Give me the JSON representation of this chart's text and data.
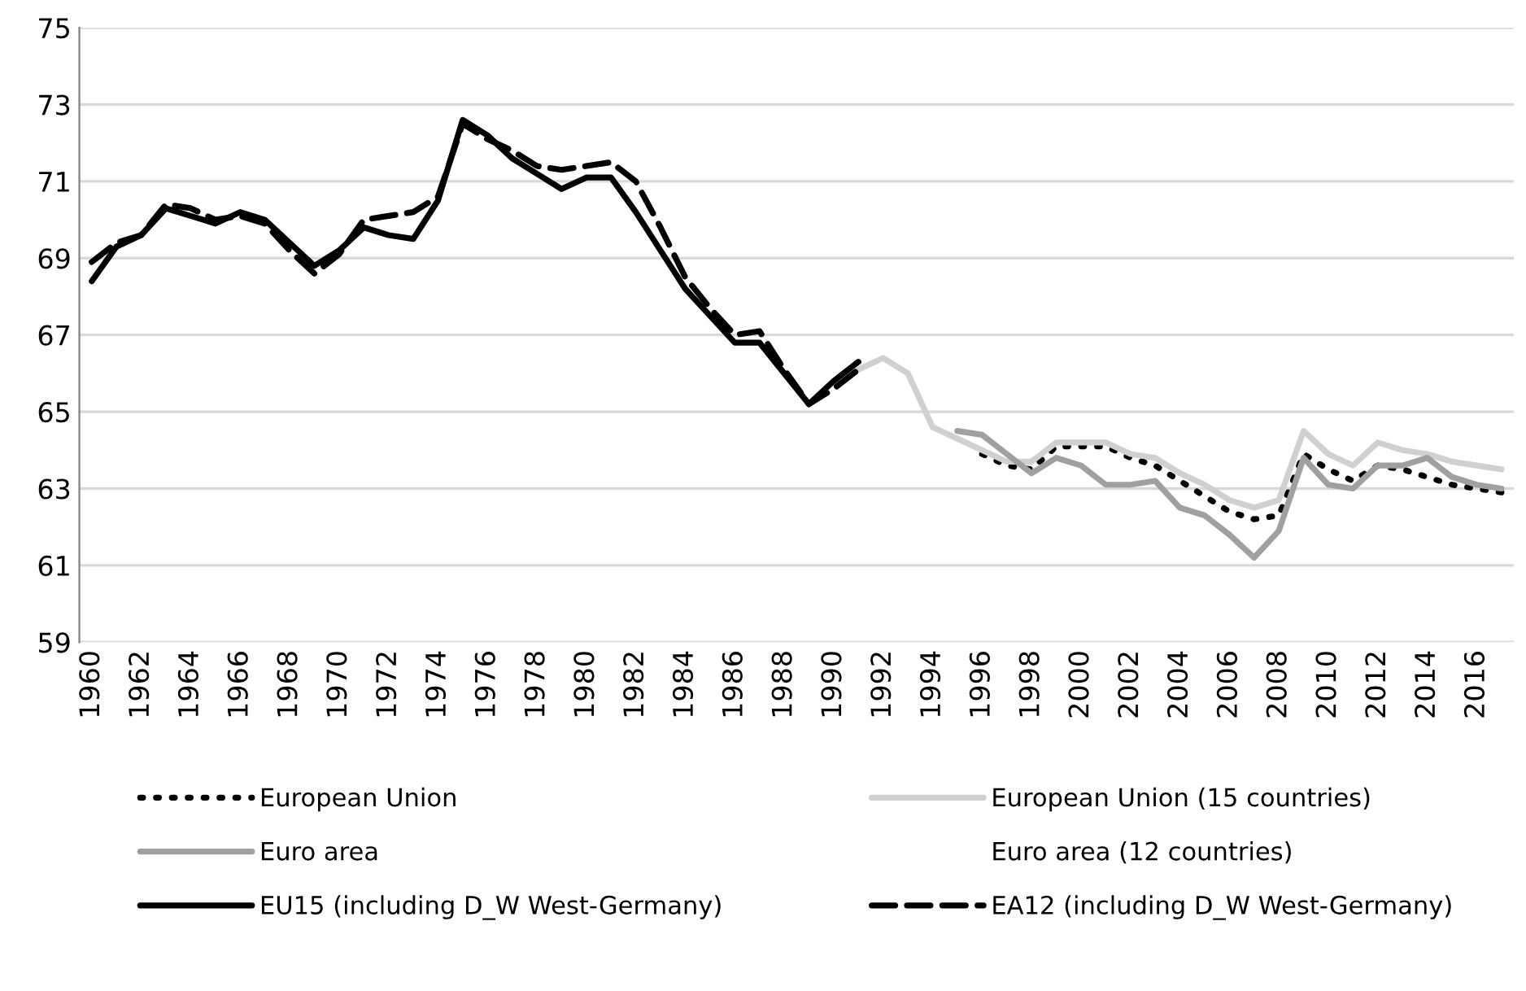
{
  "chart_data": {
    "type": "line",
    "categories": [
      "1960",
      null,
      "1962",
      null,
      "1964",
      null,
      "1966",
      null,
      "1968",
      null,
      "1970",
      null,
      "1972",
      null,
      "1974",
      null,
      "1976",
      null,
      "1978",
      null,
      "1980",
      null,
      "1982",
      null,
      "1984",
      null,
      "1986",
      null,
      "1988",
      null,
      "1990",
      null,
      "1992",
      null,
      "1994",
      null,
      "1996",
      null,
      "1998",
      null,
      "2000",
      null,
      "2002",
      null,
      "2004",
      null,
      "2006",
      null,
      "2008",
      null,
      "2010",
      null,
      "2012",
      null,
      "2014",
      null,
      "2016",
      null
    ],
    "ylim": [
      59,
      75
    ],
    "yticks": [
      59,
      61,
      63,
      65,
      67,
      69,
      71,
      73,
      75
    ],
    "grid": "y",
    "legend": "bottom",
    "series": [
      {
        "name": "European Union",
        "color": "#000000",
        "line_style": "dotted",
        "values": [
          null,
          null,
          null,
          null,
          null,
          null,
          null,
          null,
          null,
          null,
          null,
          null,
          null,
          null,
          null,
          null,
          null,
          null,
          null,
          null,
          null,
          null,
          null,
          null,
          null,
          null,
          null,
          null,
          null,
          null,
          null,
          null,
          null,
          null,
          null,
          null,
          63.9,
          63.6,
          63.5,
          64.1,
          64.1,
          64.1,
          63.8,
          63.6,
          63.2,
          62.8,
          62.4,
          62.2,
          62.3,
          63.9,
          63.5,
          63.2,
          63.6,
          63.5,
          63.3,
          63.1,
          63.0,
          62.9
        ]
      },
      {
        "name": "European Union (15 countries)",
        "color": "#d0d0d0",
        "line_style": "solid",
        "values": [
          null,
          null,
          null,
          null,
          null,
          null,
          null,
          null,
          null,
          null,
          null,
          null,
          null,
          null,
          null,
          null,
          null,
          null,
          null,
          null,
          null,
          null,
          null,
          null,
          null,
          null,
          null,
          null,
          null,
          null,
          null,
          66.1,
          66.4,
          66.0,
          64.6,
          64.3,
          64.0,
          63.7,
          63.7,
          64.2,
          64.2,
          64.2,
          63.9,
          63.8,
          63.4,
          63.1,
          62.7,
          62.5,
          62.7,
          64.5,
          63.9,
          63.6,
          64.2,
          64.0,
          63.9,
          63.7,
          63.6,
          63.5
        ]
      },
      {
        "name": "Euro area",
        "color": "#a0a0a0",
        "line_style": "solid",
        "values": [
          null,
          null,
          null,
          null,
          null,
          null,
          null,
          null,
          null,
          null,
          null,
          null,
          null,
          null,
          null,
          null,
          null,
          null,
          null,
          null,
          null,
          null,
          null,
          null,
          null,
          null,
          null,
          null,
          null,
          null,
          null,
          null,
          null,
          null,
          null,
          64.5,
          64.4,
          63.9,
          63.4,
          63.8,
          63.6,
          63.1,
          63.1,
          63.2,
          62.5,
          62.3,
          61.8,
          61.2,
          61.9,
          63.8,
          63.1,
          63.0,
          63.6,
          63.6,
          63.8,
          63.3,
          63.1,
          63.0
        ]
      },
      {
        "name": "Euro area (12 countries)",
        "values": [
          null,
          null,
          null,
          null,
          null,
          null,
          null,
          null,
          null,
          null,
          null,
          null,
          null,
          null,
          null,
          null,
          null,
          null,
          null,
          null,
          null,
          null,
          null,
          null,
          null,
          null,
          null,
          null,
          null,
          null,
          null,
          null,
          null,
          null,
          null,
          null,
          null,
          null,
          null,
          null,
          null,
          null,
          null,
          null,
          null,
          null,
          null,
          null,
          null,
          null,
          null,
          null,
          null,
          null,
          null,
          null,
          null,
          null
        ]
      },
      {
        "name": "EU15 (including D_W West-Germany)",
        "color": "#000000",
        "line_style": "solid",
        "values": [
          68.4,
          69.3,
          69.6,
          70.3,
          70.1,
          69.9,
          70.2,
          70.0,
          69.4,
          68.8,
          69.2,
          69.8,
          69.6,
          69.5,
          70.5,
          72.6,
          72.2,
          71.6,
          71.2,
          70.8,
          71.1,
          71.1,
          70.2,
          69.2,
          68.2,
          67.5,
          66.8,
          66.8,
          66.0,
          65.2,
          65.8,
          66.3,
          null,
          null,
          null,
          null,
          null,
          null,
          null,
          null,
          null,
          null,
          null,
          null,
          null,
          null,
          null,
          null,
          null,
          null,
          null,
          null,
          null,
          null,
          null,
          null,
          null,
          null
        ]
      },
      {
        "name": "EA12 (including D_W West-Germany)",
        "color": "#000000",
        "line_style": "dashed",
        "values": [
          68.9,
          69.4,
          69.6,
          70.4,
          70.3,
          70.0,
          70.1,
          69.9,
          69.2,
          68.6,
          69.1,
          70.0,
          70.1,
          70.2,
          70.6,
          72.5,
          72.1,
          71.8,
          71.4,
          71.3,
          71.4,
          71.5,
          71.0,
          69.8,
          68.5,
          67.7,
          67.0,
          67.1,
          66.1,
          65.2,
          65.6,
          66.1,
          null,
          null,
          null,
          null,
          null,
          null,
          null,
          null,
          null,
          null,
          null,
          null,
          null,
          null,
          null,
          null,
          null,
          null,
          null,
          null,
          null,
          null,
          null,
          null,
          null,
          null
        ]
      }
    ]
  }
}
